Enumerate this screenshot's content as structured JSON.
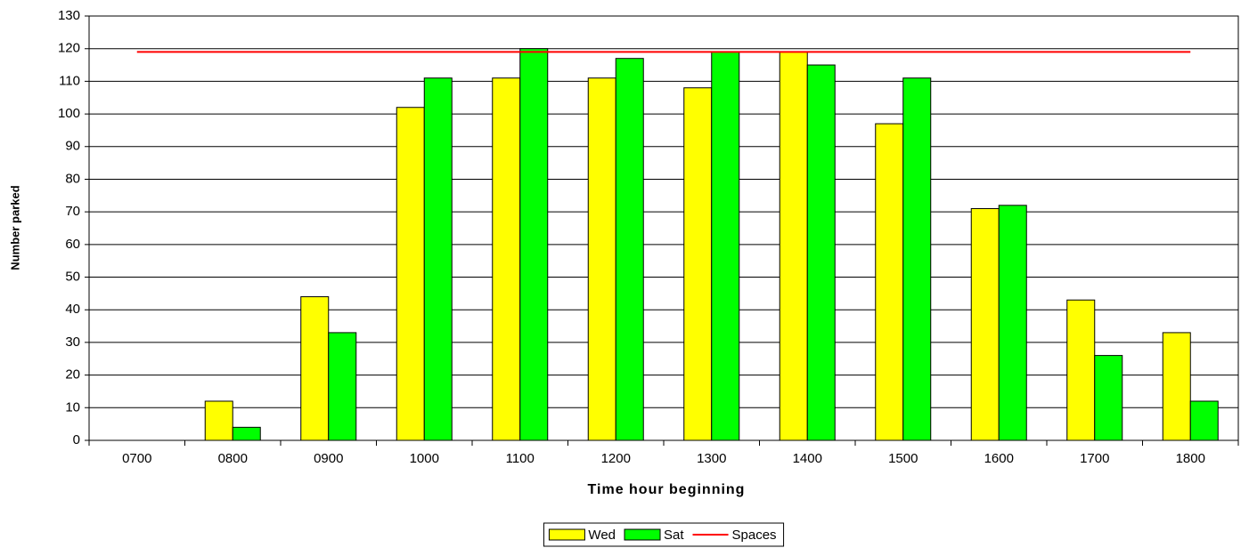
{
  "chart_data": {
    "type": "bar",
    "x_label": "Time hour beginning",
    "y_label": "Number parked",
    "categories": [
      "0700",
      "0800",
      "0900",
      "1000",
      "1100",
      "1200",
      "1300",
      "1400",
      "1500",
      "1600",
      "1700",
      "1800"
    ],
    "series": [
      {
        "name": "Wed",
        "color": "#ffff00",
        "type": "bar",
        "values": [
          0,
          12,
          44,
          102,
          111,
          111,
          108,
          119,
          97,
          71,
          43,
          33
        ]
      },
      {
        "name": "Sat",
        "color": "#00ff00",
        "type": "bar",
        "values": [
          0,
          4,
          33,
          111,
          120,
          117,
          119,
          115,
          111,
          72,
          26,
          12
        ]
      },
      {
        "name": "Spaces",
        "color": "#ff0000",
        "type": "line",
        "values": [
          119,
          119,
          119,
          119,
          119,
          119,
          119,
          119,
          119,
          119,
          119,
          119
        ]
      }
    ],
    "ylim": [
      0,
      130
    ],
    "yticks": [
      0,
      10,
      20,
      30,
      40,
      50,
      60,
      70,
      80,
      90,
      100,
      110,
      120,
      130
    ],
    "grid": true,
    "legend": "bottom"
  }
}
